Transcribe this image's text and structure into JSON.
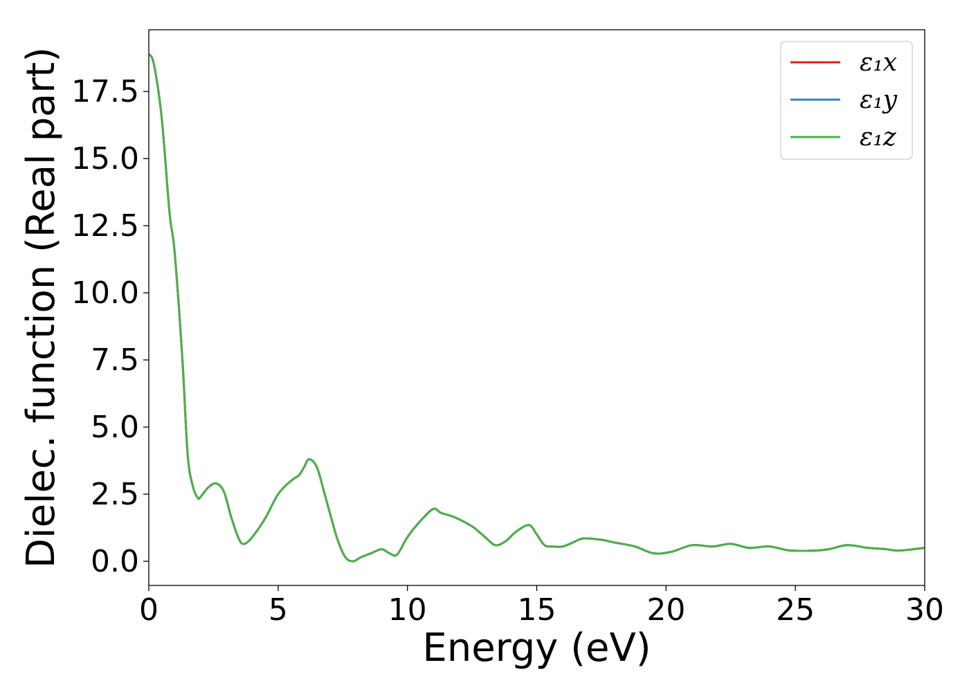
{
  "chart_data": {
    "type": "line",
    "title": "",
    "xlabel": "Energy (eV)",
    "ylabel": "Dielec. function (Real part)",
    "xlim": [
      0,
      30
    ],
    "ylim": [
      -0.9,
      19.8
    ],
    "xticks": [
      0,
      5,
      10,
      15,
      20,
      25,
      30
    ],
    "xtick_labels": [
      "0",
      "5",
      "10",
      "15",
      "20",
      "25",
      "30"
    ],
    "yticks": [
      0,
      2.5,
      5,
      7.5,
      10,
      12.5,
      15,
      17.5
    ],
    "ytick_labels": [
      "0.0",
      "2.5",
      "5.0",
      "7.5",
      "10.0",
      "12.5",
      "15.0",
      "17.5"
    ],
    "grid": false,
    "legend_position": "top-right",
    "series": [
      {
        "name": "ε₁x",
        "color": "#e41a1c",
        "x": [
          0.0,
          0.2,
          0.5,
          0.8,
          1.0,
          1.3,
          1.5,
          1.7,
          1.9,
          2.0,
          2.3,
          2.6,
          2.9,
          3.2,
          3.5,
          3.7,
          4.0,
          4.5,
          5.0,
          5.5,
          5.8,
          6.0,
          6.2,
          6.5,
          6.8,
          7.0,
          7.3,
          7.6,
          7.9,
          8.2,
          8.6,
          9.0,
          9.3,
          9.6,
          10.0,
          10.5,
          11.0,
          11.3,
          11.8,
          12.5,
          13.0,
          13.4,
          13.8,
          14.2,
          14.7,
          15.0,
          15.3,
          15.6,
          16.0,
          16.4,
          16.8,
          17.5,
          18.0,
          18.8,
          19.5,
          20.2,
          21.0,
          21.8,
          22.5,
          23.2,
          24.0,
          24.8,
          25.8,
          26.3,
          27.0,
          27.8,
          28.5,
          29.0,
          30.0
        ],
        "y": [
          18.9,
          18.5,
          16.5,
          13.0,
          11.5,
          7.5,
          4.0,
          2.8,
          2.35,
          2.4,
          2.75,
          2.9,
          2.6,
          1.6,
          0.8,
          0.65,
          0.9,
          1.6,
          2.5,
          3.0,
          3.2,
          3.5,
          3.8,
          3.5,
          2.5,
          1.8,
          0.8,
          0.15,
          0.0,
          0.15,
          0.3,
          0.45,
          0.3,
          0.25,
          0.9,
          1.5,
          1.95,
          1.8,
          1.65,
          1.3,
          0.9,
          0.6,
          0.75,
          1.1,
          1.35,
          1.0,
          0.6,
          0.55,
          0.55,
          0.7,
          0.85,
          0.8,
          0.7,
          0.55,
          0.3,
          0.35,
          0.6,
          0.55,
          0.65,
          0.5,
          0.55,
          0.4,
          0.4,
          0.45,
          0.6,
          0.5,
          0.45,
          0.4,
          0.5
        ]
      },
      {
        "name": "ε₁y",
        "color": "#377eb8",
        "x": [
          0.0,
          0.2,
          0.5,
          0.8,
          1.0,
          1.3,
          1.5,
          1.7,
          1.9,
          2.0,
          2.3,
          2.6,
          2.9,
          3.2,
          3.5,
          3.7,
          4.0,
          4.5,
          5.0,
          5.5,
          5.8,
          6.0,
          6.2,
          6.5,
          6.8,
          7.0,
          7.3,
          7.6,
          7.9,
          8.2,
          8.6,
          9.0,
          9.3,
          9.6,
          10.0,
          10.5,
          11.0,
          11.3,
          11.8,
          12.5,
          13.0,
          13.4,
          13.8,
          14.2,
          14.7,
          15.0,
          15.3,
          15.6,
          16.0,
          16.4,
          16.8,
          17.5,
          18.0,
          18.8,
          19.5,
          20.2,
          21.0,
          21.8,
          22.5,
          23.2,
          24.0,
          24.8,
          25.8,
          26.3,
          27.0,
          27.8,
          28.5,
          29.0,
          30.0
        ],
        "y": [
          18.9,
          18.5,
          16.5,
          13.0,
          11.5,
          7.5,
          4.0,
          2.8,
          2.35,
          2.4,
          2.75,
          2.9,
          2.6,
          1.6,
          0.8,
          0.65,
          0.9,
          1.6,
          2.5,
          3.0,
          3.2,
          3.5,
          3.8,
          3.5,
          2.5,
          1.8,
          0.8,
          0.15,
          0.0,
          0.15,
          0.3,
          0.45,
          0.3,
          0.25,
          0.9,
          1.5,
          1.95,
          1.8,
          1.65,
          1.3,
          0.9,
          0.6,
          0.75,
          1.1,
          1.35,
          1.0,
          0.6,
          0.55,
          0.55,
          0.7,
          0.85,
          0.8,
          0.7,
          0.55,
          0.3,
          0.35,
          0.6,
          0.55,
          0.65,
          0.5,
          0.55,
          0.4,
          0.4,
          0.45,
          0.6,
          0.5,
          0.45,
          0.4,
          0.5
        ]
      },
      {
        "name": "ε₁z",
        "color": "#4daf4a",
        "x": [
          0.0,
          0.2,
          0.5,
          0.8,
          1.0,
          1.3,
          1.5,
          1.7,
          1.9,
          2.0,
          2.3,
          2.6,
          2.9,
          3.2,
          3.5,
          3.7,
          4.0,
          4.5,
          5.0,
          5.5,
          5.8,
          6.0,
          6.2,
          6.5,
          6.8,
          7.0,
          7.3,
          7.6,
          7.9,
          8.2,
          8.6,
          9.0,
          9.3,
          9.6,
          10.0,
          10.5,
          11.0,
          11.3,
          11.8,
          12.5,
          13.0,
          13.4,
          13.8,
          14.2,
          14.7,
          15.0,
          15.3,
          15.6,
          16.0,
          16.4,
          16.8,
          17.5,
          18.0,
          18.8,
          19.5,
          20.2,
          21.0,
          21.8,
          22.5,
          23.2,
          24.0,
          24.8,
          25.8,
          26.3,
          27.0,
          27.8,
          28.5,
          29.0,
          30.0
        ],
        "y": [
          18.9,
          18.5,
          16.5,
          13.0,
          11.5,
          7.5,
          4.0,
          2.8,
          2.35,
          2.4,
          2.75,
          2.9,
          2.6,
          1.6,
          0.8,
          0.65,
          0.9,
          1.6,
          2.5,
          3.0,
          3.2,
          3.5,
          3.8,
          3.5,
          2.5,
          1.8,
          0.8,
          0.15,
          0.0,
          0.15,
          0.3,
          0.45,
          0.3,
          0.25,
          0.9,
          1.5,
          1.95,
          1.8,
          1.65,
          1.3,
          0.9,
          0.6,
          0.75,
          1.1,
          1.35,
          1.0,
          0.6,
          0.55,
          0.55,
          0.7,
          0.85,
          0.8,
          0.7,
          0.55,
          0.3,
          0.35,
          0.6,
          0.55,
          0.65,
          0.5,
          0.55,
          0.4,
          0.4,
          0.45,
          0.6,
          0.5,
          0.45,
          0.4,
          0.5
        ]
      }
    ]
  }
}
